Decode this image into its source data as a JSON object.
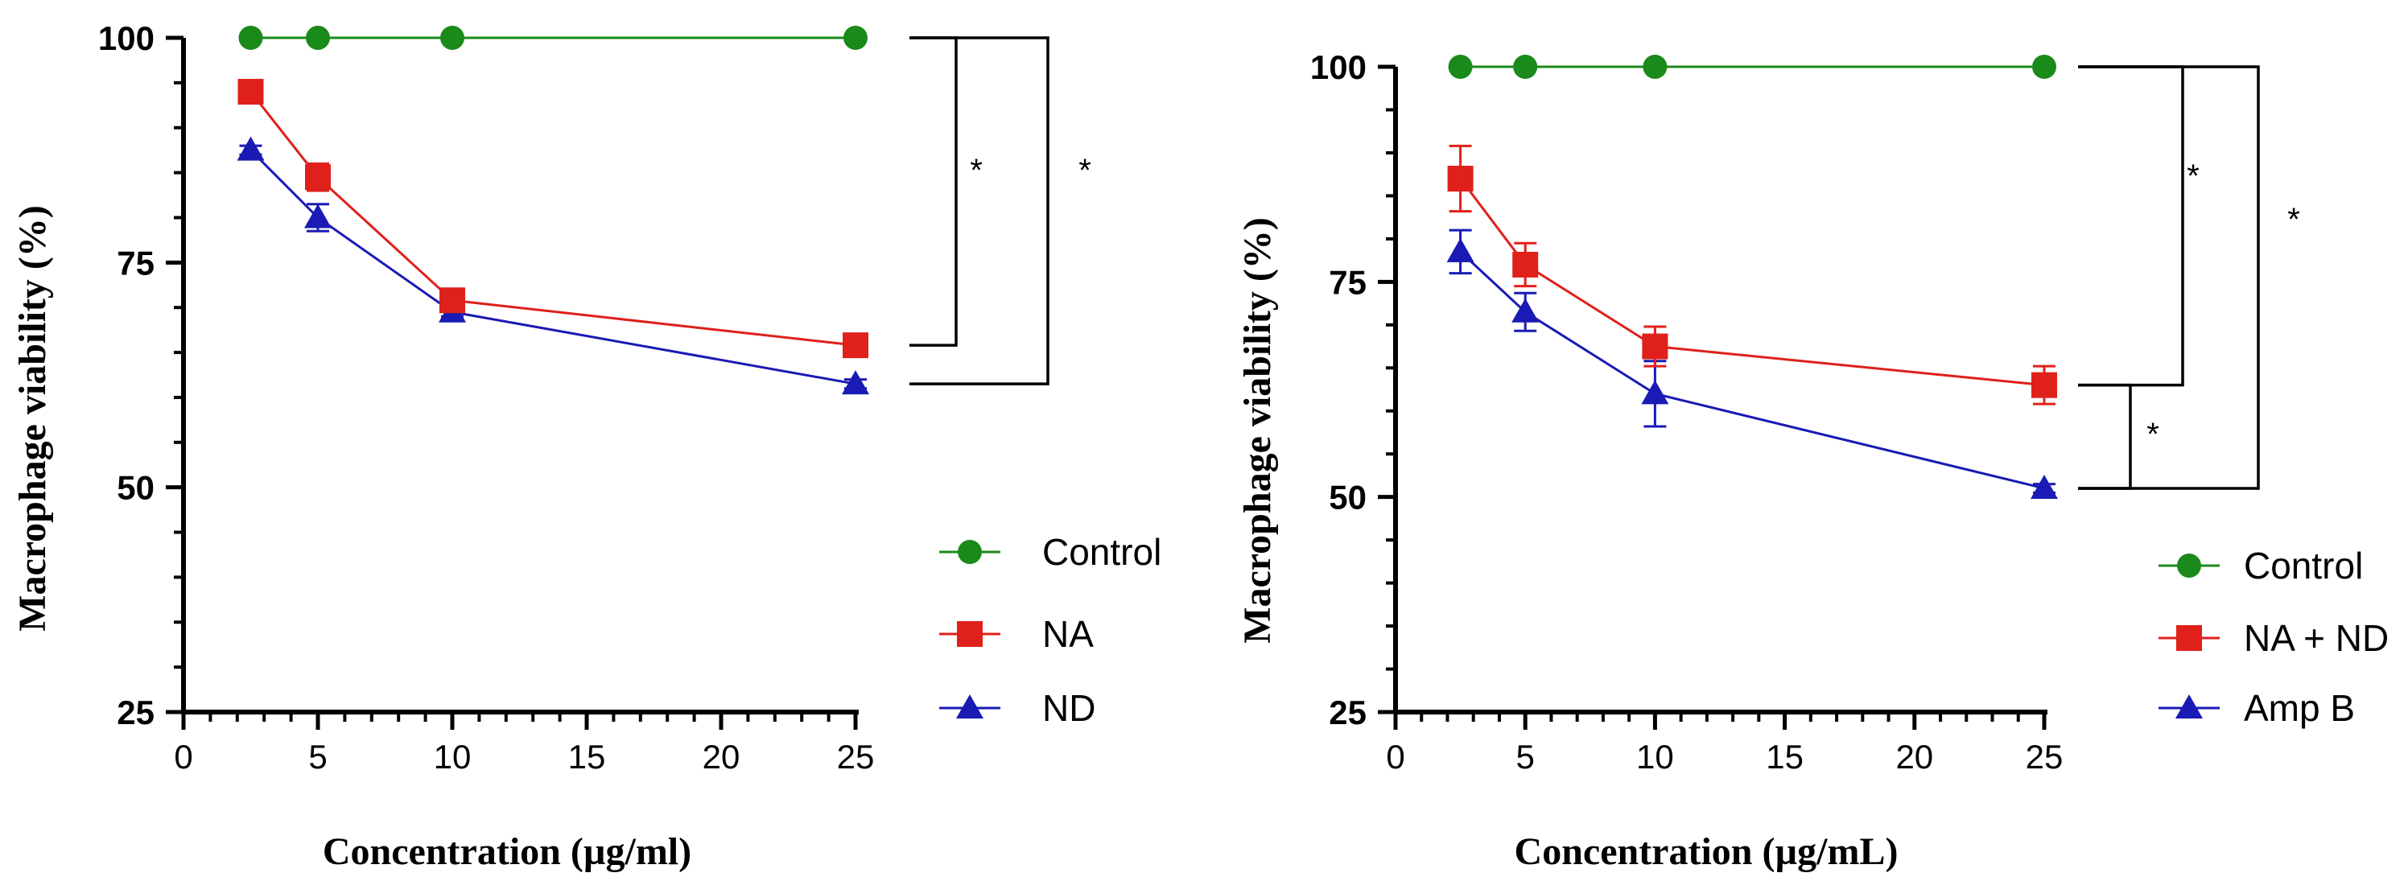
{
  "chart_data": [
    {
      "type": "line",
      "title": "",
      "xlabel": "Concentration (µg/ml)",
      "ylabel": "Macrophage viability (%)",
      "xlim": [
        0,
        25
      ],
      "ylim": [
        25,
        100
      ],
      "xticks": [
        "0",
        "5",
        "10",
        "15",
        "20",
        "25"
      ],
      "yticks": [
        "25",
        "50",
        "75",
        "100"
      ],
      "x": [
        2.5,
        5,
        10,
        25
      ],
      "series": [
        {
          "name": "Control",
          "color": "#1a8a1a",
          "marker": "circle",
          "values": [
            100,
            100,
            100,
            100
          ],
          "errors": [
            0,
            0,
            0,
            0
          ]
        },
        {
          "name": "NA",
          "color": "#e0201a",
          "marker": "square",
          "values": [
            94,
            84.5,
            70.8,
            65.8
          ],
          "errors": [
            0.5,
            1.5,
            0.5,
            0.5
          ]
        },
        {
          "name": "ND",
          "color": "#1a1ab4",
          "marker": "triangle",
          "values": [
            87.5,
            80,
            69.5,
            61.5
          ],
          "errors": [
            0.5,
            1.5,
            0.5,
            0.5
          ]
        }
      ],
      "significance": [
        {
          "from": "Control",
          "to": "NA",
          "label": "*"
        },
        {
          "from": "Control",
          "to": "ND",
          "label": "*"
        }
      ],
      "legend_position": "right"
    },
    {
      "type": "line",
      "title": "",
      "xlabel": "Concentration (µg/mL)",
      "ylabel": "Macrophage viability (%)",
      "xlim": [
        0,
        25
      ],
      "ylim": [
        25,
        100
      ],
      "xticks": [
        "0",
        "5",
        "10",
        "15",
        "20",
        "25"
      ],
      "yticks": [
        "25",
        "50",
        "75",
        "100"
      ],
      "x": [
        2.5,
        5,
        10,
        25
      ],
      "series": [
        {
          "name": "Control",
          "color": "#1a8a1a",
          "marker": "circle",
          "values": [
            100,
            100,
            100,
            100
          ],
          "errors": [
            0,
            0,
            0,
            0
          ]
        },
        {
          "name": "NA + ND",
          "color": "#e0201a",
          "marker": "square",
          "values": [
            87,
            77,
            67.5,
            63
          ],
          "errors": [
            3.8,
            2.5,
            2.3,
            2.2
          ]
        },
        {
          "name": "Amp B",
          "color": "#1a1ab4",
          "marker": "triangle",
          "values": [
            78.5,
            71.5,
            62,
            51
          ],
          "errors": [
            2.5,
            2.2,
            3.8,
            0.5
          ]
        }
      ],
      "significance": [
        {
          "from": "Control",
          "to": "NA + ND",
          "label": "*"
        },
        {
          "from": "NA + ND",
          "to": "Amp B",
          "label": "*"
        },
        {
          "from": "Control",
          "to": "Amp B",
          "label": "*"
        }
      ],
      "legend_position": "right"
    }
  ]
}
